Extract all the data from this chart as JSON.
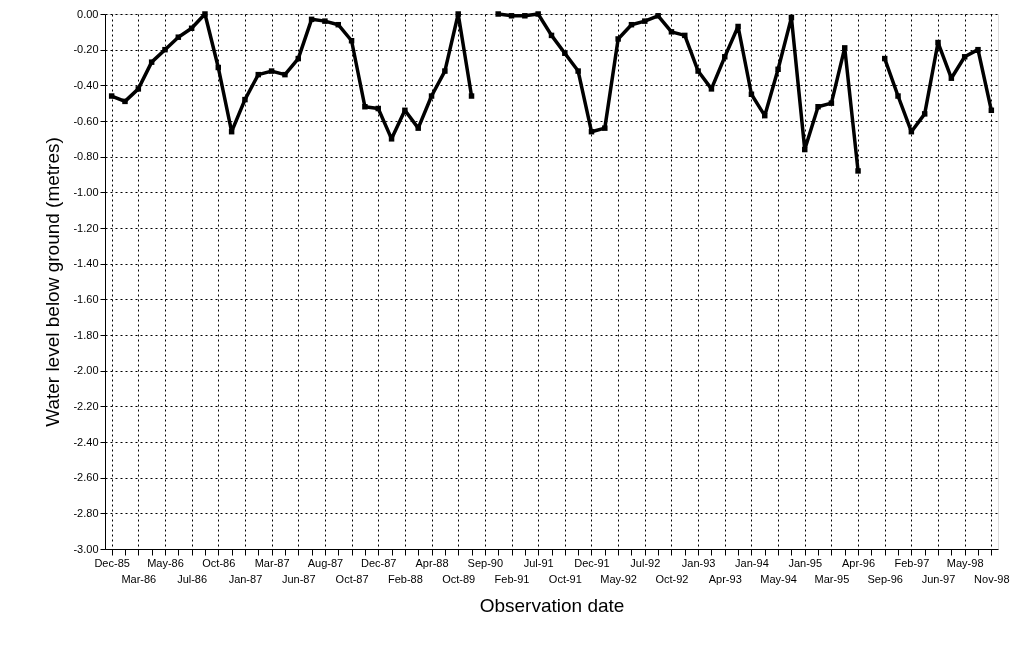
{
  "chart_data": {
    "type": "line",
    "xlabel": "Observation date",
    "ylabel": "Water level below ground (metres)",
    "categories": [
      "Dec-85",
      null,
      "Mar-86",
      null,
      "May-86",
      null,
      "Jul-86",
      null,
      "Oct-86",
      null,
      "Jan-87",
      null,
      "Mar-87",
      null,
      "Jun-87",
      null,
      "Aug-87",
      null,
      "Oct-87",
      null,
      "Dec-87",
      null,
      "Feb-88",
      null,
      "Apr-88",
      null,
      "Oct-89",
      null,
      "Sep-90",
      null,
      "Feb-91",
      null,
      "Jul-91",
      null,
      "Oct-91",
      null,
      "Dec-91",
      null,
      "May-92",
      null,
      "Jul-92",
      null,
      "Oct-92",
      null,
      "Jan-93",
      null,
      "Apr-93",
      null,
      "Jan-94",
      null,
      "May-94",
      null,
      "Jan-95",
      null,
      "Mar-95",
      null,
      "Apr-96",
      null,
      "Sep-96",
      null,
      "Feb-97",
      null,
      "Jun-97",
      null,
      "May-98",
      null,
      "Nov-98"
    ],
    "series": [
      {
        "color": "#000000",
        "values": [
          -0.46,
          -0.49,
          -0.42,
          -0.27,
          -0.2,
          -0.13,
          -0.08,
          0,
          -0.3,
          -0.66,
          -0.48,
          -0.34,
          -0.32,
          -0.34,
          -0.25,
          -0.03,
          -0.04,
          -0.06,
          -0.15,
          -0.52,
          -0.53,
          -0.7,
          -0.54,
          -0.64,
          -0.46,
          -0.32,
          0,
          -0.46,
          null,
          0,
          -0.01,
          -0.01,
          0,
          -0.12,
          -0.22,
          -0.32,
          -0.66,
          -0.64,
          -0.14,
          -0.06,
          -0.04,
          -0.01,
          -0.1,
          -0.12,
          -0.32,
          -0.42,
          -0.24,
          -0.07,
          -0.45,
          -0.57,
          -0.31,
          -0.02,
          -0.76,
          -0.52,
          -0.5,
          -0.19,
          -0.88,
          null,
          -0.25,
          -0.46,
          -0.66,
          -0.56,
          -0.16,
          -0.36,
          -0.24,
          -0.2,
          -0.54
        ]
      }
    ],
    "ylim": [
      -3,
      0
    ],
    "yticks": [
      {
        "value": -3,
        "label": "-3.00"
      },
      {
        "value": -2.8,
        "label": "-2.80"
      },
      {
        "value": -2.6,
        "label": "-2.60"
      },
      {
        "value": -2.4,
        "label": "-2.40"
      },
      {
        "value": -2.2,
        "label": "-2.20"
      },
      {
        "value": -2,
        "label": "-2.00"
      },
      {
        "value": -1.8,
        "label": "-1.80"
      },
      {
        "value": -1.6,
        "label": "-1.60"
      },
      {
        "value": -1.4,
        "label": "-1.40"
      },
      {
        "value": -1.2,
        "label": "-1.20"
      },
      {
        "value": -1,
        "label": "-1.00"
      },
      {
        "value": -0.8,
        "label": "-0.80"
      },
      {
        "value": -0.6,
        "label": "-0.60"
      },
      {
        "value": -0.4,
        "label": "-0.40"
      },
      {
        "value": -0.2,
        "label": "-0.20"
      },
      {
        "value": 0,
        "label": "0.00"
      }
    ],
    "grid": true,
    "marker": "square",
    "line_style": "solid"
  }
}
